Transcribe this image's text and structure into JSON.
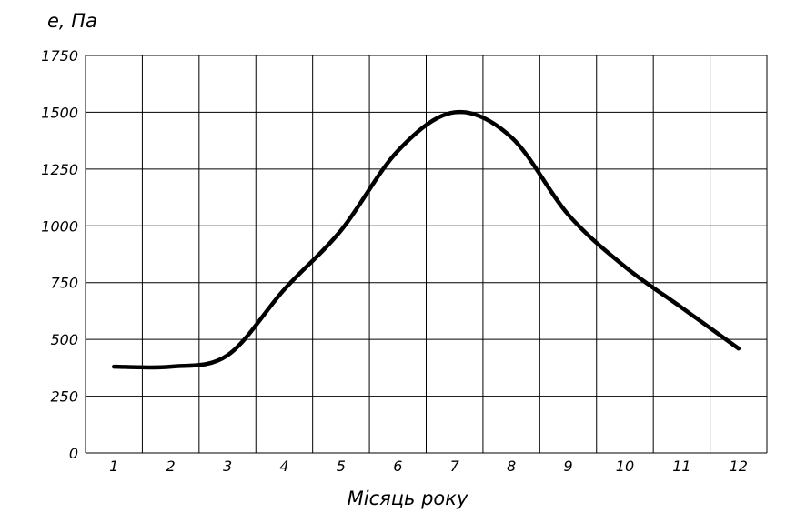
{
  "chart_data": {
    "type": "line",
    "title": "",
    "ylabel": "e, Па",
    "xlabel": "Місяць року",
    "x": [
      1,
      2,
      3,
      4,
      5,
      6,
      7,
      8,
      9,
      10,
      11,
      12
    ],
    "series": [
      {
        "values": [
          380,
          380,
          430,
          720,
          980,
          1330,
          1500,
          1390,
          1050,
          820,
          640,
          460
        ]
      }
    ],
    "xlim": [
      0.5,
      12.5
    ],
    "ylim": [
      0,
      1750
    ],
    "yticks": [
      0,
      250,
      500,
      750,
      1000,
      1250,
      1500,
      1750
    ],
    "xticks": [
      1,
      2,
      3,
      4,
      5,
      6,
      7,
      8,
      9,
      10,
      11,
      12
    ],
    "grid": true,
    "line_color": "#000000"
  }
}
